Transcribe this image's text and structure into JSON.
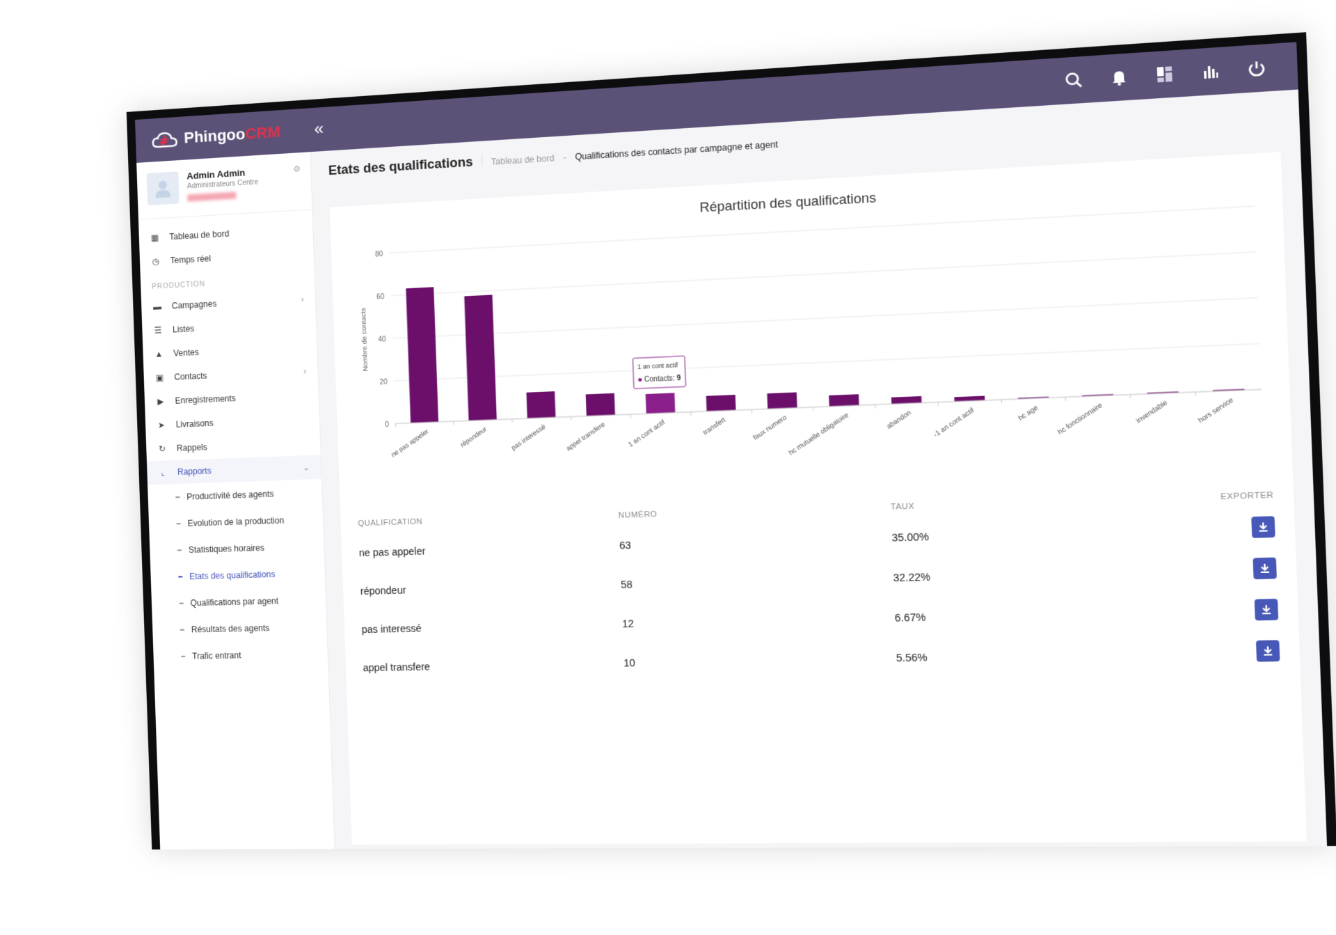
{
  "app": {
    "logo_main": "Phingoo",
    "logo_accent": "CRM"
  },
  "topbar": {
    "collapse": "«"
  },
  "user": {
    "name": "Admin Admin",
    "role": "Administrateurs Centre"
  },
  "nav": {
    "top_items": [
      {
        "label": "Tableau de bord",
        "icon": "grid-icon"
      },
      {
        "label": "Temps réel",
        "icon": "clock-icon"
      }
    ],
    "section_label": "PRODUCTION",
    "production_items": [
      {
        "label": "Campagnes",
        "icon": "folder-icon",
        "chevron": true
      },
      {
        "label": "Listes",
        "icon": "list-icon",
        "chevron": false
      },
      {
        "label": "Ventes",
        "icon": "thumb-up-icon",
        "chevron": false
      },
      {
        "label": "Contacts",
        "icon": "contact-icon",
        "chevron": true
      },
      {
        "label": "Enregistrements",
        "icon": "play-icon",
        "chevron": false
      },
      {
        "label": "Livraisons",
        "icon": "send-icon",
        "chevron": false
      },
      {
        "label": "Rappels",
        "icon": "refresh-icon",
        "chevron": false
      }
    ],
    "reports_label": "Rapports",
    "report_items": [
      "Productivité des agents",
      "Evolution de la production",
      "Statistiques horaires",
      "Etats des qualifications",
      "Qualifications par agent",
      "Résultats des agents",
      "Trafic entrant"
    ],
    "active_report_index": 3
  },
  "page": {
    "title": "Etats des qualifications",
    "breadcrumb_root": "Tableau de bord",
    "breadcrumb_sep": "-",
    "breadcrumb_current": "Qualifications des contacts par campagne et agent"
  },
  "chart_data": {
    "type": "bar",
    "title": "Répartition des qualifications",
    "ylabel": "Nombre de contacts",
    "xlabel": "",
    "ylim": [
      0,
      80
    ],
    "yticks": [
      0,
      20,
      40,
      60,
      80
    ],
    "categories": [
      "ne pas appeler",
      "répondeur",
      "pas interessé",
      "appel transfere",
      "1 an cont actif",
      "transfert",
      "faux numero",
      "hc mutuelle obligatoire",
      "abandon",
      "-1 an cont actif",
      "hc age",
      "hc fonctionnaire",
      "invendable",
      "hors service"
    ],
    "values": [
      63,
      58,
      12,
      10,
      9,
      7,
      7,
      5,
      3,
      2,
      0.5,
      0.5,
      0.5,
      0.5
    ],
    "bar_color": "#6b0f6b",
    "highlight_color": "#8a1e8a",
    "grid": true,
    "tooltip": {
      "category": "1 an cont actif",
      "series_label": "Contacts:",
      "value": "9"
    }
  },
  "table": {
    "headers": [
      "QUALIFICATION",
      "NUMÉRO",
      "TAUX",
      "EXPORTER"
    ],
    "rows": [
      {
        "qualification": "ne pas appeler",
        "numero": "63",
        "taux": "35.00%"
      },
      {
        "qualification": "répondeur",
        "numero": "58",
        "taux": "32.22%"
      },
      {
        "qualification": "pas interessé",
        "numero": "12",
        "taux": "6.67%"
      },
      {
        "qualification": "appel transfere",
        "numero": "10",
        "taux": "5.56%"
      }
    ]
  }
}
